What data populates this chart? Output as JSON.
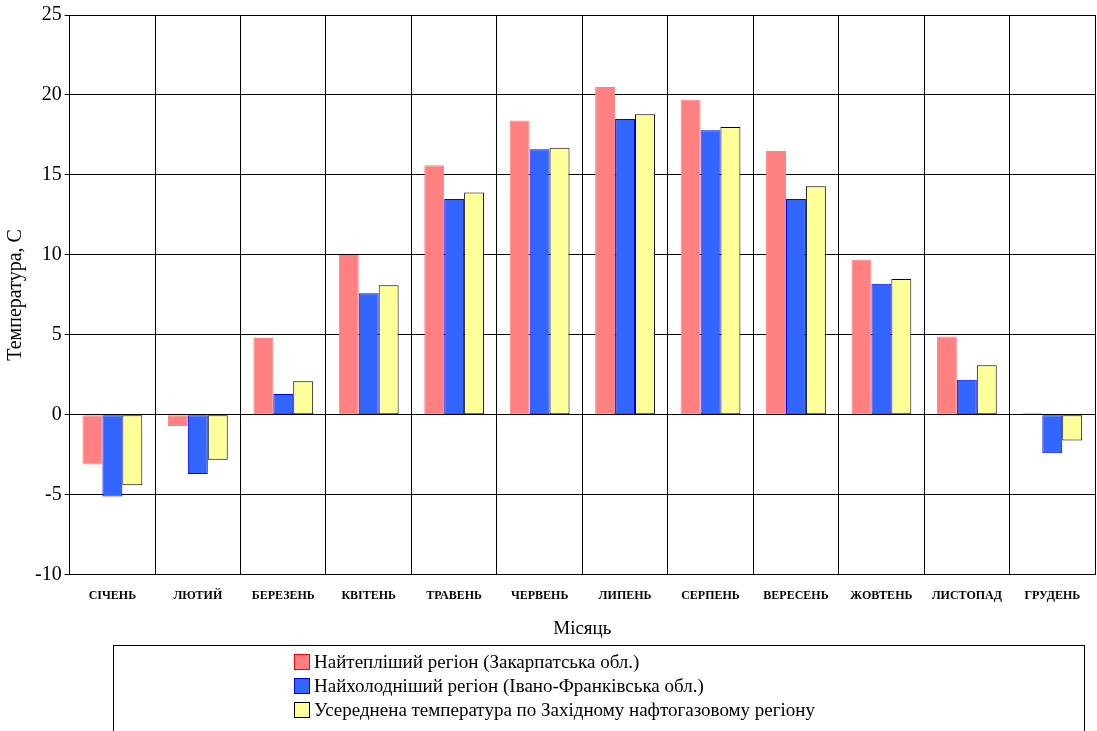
{
  "chart_data": {
    "type": "bar",
    "xlabel": "Місяць",
    "ylabel": "Температура, С",
    "categories": [
      "СІЧЕНЬ",
      "ЛЮТИЙ",
      "БЕРЕЗЕНЬ",
      "КВІТЕНЬ",
      "ТРАВЕНЬ",
      "ЧЕРВЕНЬ",
      "ЛИПЕНЬ",
      "СЕРПЕНЬ",
      "ВЕРЕСЕНЬ",
      "ЖОВТЕНЬ",
      "ЛИСТОПАД",
      "ГРУДЕНЬ"
    ],
    "series": [
      {
        "name": "Найтепліший регіон (Закарпатська обл.)",
        "color": "#ff8080",
        "values": [
          -3.1,
          -0.7,
          4.8,
          10.0,
          15.6,
          18.4,
          20.5,
          19.7,
          16.5,
          9.7,
          4.9,
          0.1
        ]
      },
      {
        "name": "Найхолодніший регіон (Івано-Франківська обл.)",
        "color": "#3366ff",
        "values": [
          -5.1,
          -3.7,
          1.3,
          7.6,
          13.5,
          16.6,
          18.5,
          17.8,
          13.5,
          8.2,
          2.2,
          -2.4
        ]
      },
      {
        "name": "Усереднена температура по Західному нафтогазовому регіону",
        "color": "#ffff99",
        "values": [
          -4.4,
          -2.8,
          2.1,
          8.1,
          13.9,
          16.7,
          18.8,
          18.0,
          14.3,
          8.5,
          3.1,
          -1.6
        ]
      }
    ],
    "ylim": [
      -10,
      25
    ],
    "yticks": [
      -10,
      -5,
      0,
      5,
      10,
      15,
      20,
      25
    ],
    "grid": true,
    "legend": "bottom"
  }
}
